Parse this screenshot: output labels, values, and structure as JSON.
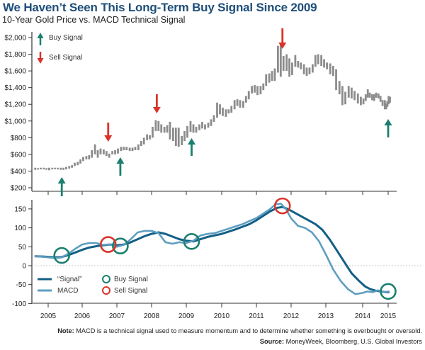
{
  "header": {
    "title": "We Haven’t Seen This Long-Term Buy Signal Since 2009",
    "subtitle": "10-Year Gold Price vs. MACD Technical Signal"
  },
  "footer": {
    "note_label": "Note:",
    "note_text": " MACD is a technical signal used to measure momentum and to determine whether something is overbought or oversold.",
    "source_label": "Source:",
    "source_text": " MoneyWeek, Bloomberg, U.S. Global Investors"
  },
  "colors": {
    "title": "#1f4e79",
    "price_bar": "#8c8c8c",
    "buy": "#1a7f6e",
    "sell": "#d9342b",
    "signal_line": "#135f86",
    "macd_line": "#5e9ec0",
    "zero_line": "#bbbbbb",
    "axis": "#333333"
  },
  "chart_data": [
    {
      "type": "bar",
      "subtype": "range-bar",
      "title": "Gold Price",
      "ylabel": "",
      "xlabel": "",
      "ylim": [
        200,
        2000
      ],
      "xlim": [
        2004.6,
        2015.1
      ],
      "yticks": [
        "$200",
        "$400",
        "$600",
        "$800",
        "$1,000",
        "$1,200",
        "$1,400",
        "$1,600",
        "$1,800",
        "$2,000"
      ],
      "ytick_values": [
        200,
        400,
        600,
        800,
        1000,
        1200,
        1400,
        1600,
        1800,
        2000
      ],
      "xticks": [
        "2005",
        "2006",
        "2007",
        "2008",
        "2009",
        "2010",
        "2011",
        "2012",
        "2013",
        "2014",
        "2015"
      ],
      "xtick_values": [
        2005,
        2006,
        2007,
        2008,
        2009,
        2010,
        2011,
        2012,
        2013,
        2014,
        2015
      ],
      "legend": [
        {
          "label": "Buy Signal",
          "marker": "up-arrow"
        },
        {
          "label": "Sell Signal",
          "marker": "down-arrow"
        }
      ],
      "legend_position": "top-left",
      "bars": [
        {
          "x": 2004.62,
          "low": 415,
          "high": 440
        },
        {
          "x": 2004.7,
          "low": 420,
          "high": 435
        },
        {
          "x": 2004.78,
          "low": 420,
          "high": 440
        },
        {
          "x": 2004.87,
          "low": 420,
          "high": 440
        },
        {
          "x": 2004.95,
          "low": 415,
          "high": 435
        },
        {
          "x": 2005.03,
          "low": 410,
          "high": 440
        },
        {
          "x": 2005.12,
          "low": 420,
          "high": 440
        },
        {
          "x": 2005.2,
          "low": 425,
          "high": 440
        },
        {
          "x": 2005.28,
          "low": 420,
          "high": 440
        },
        {
          "x": 2005.37,
          "low": 415,
          "high": 440
        },
        {
          "x": 2005.45,
          "low": 415,
          "high": 440
        },
        {
          "x": 2005.53,
          "low": 420,
          "high": 450
        },
        {
          "x": 2005.62,
          "low": 430,
          "high": 460
        },
        {
          "x": 2005.7,
          "low": 440,
          "high": 470
        },
        {
          "x": 2005.78,
          "low": 460,
          "high": 500
        },
        {
          "x": 2005.87,
          "low": 470,
          "high": 510
        },
        {
          "x": 2005.95,
          "low": 490,
          "high": 540
        },
        {
          "x": 2006.03,
          "low": 520,
          "high": 570
        },
        {
          "x": 2006.12,
          "low": 540,
          "high": 580
        },
        {
          "x": 2006.2,
          "low": 540,
          "high": 590
        },
        {
          "x": 2006.28,
          "low": 560,
          "high": 650
        },
        {
          "x": 2006.37,
          "low": 600,
          "high": 720
        },
        {
          "x": 2006.45,
          "low": 560,
          "high": 650
        },
        {
          "x": 2006.53,
          "low": 600,
          "high": 670
        },
        {
          "x": 2006.62,
          "low": 600,
          "high": 660
        },
        {
          "x": 2006.7,
          "low": 580,
          "high": 640
        },
        {
          "x": 2006.78,
          "low": 560,
          "high": 610
        },
        {
          "x": 2006.87,
          "low": 600,
          "high": 640
        },
        {
          "x": 2006.95,
          "low": 600,
          "high": 650
        },
        {
          "x": 2007.03,
          "low": 610,
          "high": 670
        },
        {
          "x": 2007.12,
          "low": 640,
          "high": 690
        },
        {
          "x": 2007.2,
          "low": 650,
          "high": 690
        },
        {
          "x": 2007.28,
          "low": 650,
          "high": 690
        },
        {
          "x": 2007.37,
          "low": 640,
          "high": 680
        },
        {
          "x": 2007.45,
          "low": 640,
          "high": 680
        },
        {
          "x": 2007.53,
          "low": 650,
          "high": 690
        },
        {
          "x": 2007.62,
          "low": 650,
          "high": 720
        },
        {
          "x": 2007.7,
          "low": 700,
          "high": 760
        },
        {
          "x": 2007.78,
          "low": 720,
          "high": 800
        },
        {
          "x": 2007.87,
          "low": 770,
          "high": 840
        },
        {
          "x": 2007.95,
          "low": 780,
          "high": 830
        },
        {
          "x": 2008.03,
          "low": 800,
          "high": 930
        },
        {
          "x": 2008.12,
          "low": 880,
          "high": 1010
        },
        {
          "x": 2008.2,
          "low": 880,
          "high": 1000
        },
        {
          "x": 2008.28,
          "low": 860,
          "high": 960
        },
        {
          "x": 2008.37,
          "low": 860,
          "high": 930
        },
        {
          "x": 2008.45,
          "low": 860,
          "high": 950
        },
        {
          "x": 2008.53,
          "low": 780,
          "high": 990
        },
        {
          "x": 2008.62,
          "low": 760,
          "high": 920
        },
        {
          "x": 2008.7,
          "low": 700,
          "high": 920
        },
        {
          "x": 2008.78,
          "low": 690,
          "high": 920
        },
        {
          "x": 2008.87,
          "low": 710,
          "high": 820
        },
        {
          "x": 2008.95,
          "low": 760,
          "high": 880
        },
        {
          "x": 2009.03,
          "low": 800,
          "high": 940
        },
        {
          "x": 2009.12,
          "low": 870,
          "high": 1000
        },
        {
          "x": 2009.2,
          "low": 860,
          "high": 960
        },
        {
          "x": 2009.28,
          "low": 860,
          "high": 930
        },
        {
          "x": 2009.37,
          "low": 890,
          "high": 960
        },
        {
          "x": 2009.45,
          "low": 910,
          "high": 990
        },
        {
          "x": 2009.53,
          "low": 900,
          "high": 960
        },
        {
          "x": 2009.62,
          "low": 920,
          "high": 980
        },
        {
          "x": 2009.7,
          "low": 940,
          "high": 1020
        },
        {
          "x": 2009.78,
          "low": 990,
          "high": 1070
        },
        {
          "x": 2009.87,
          "low": 1040,
          "high": 1220
        },
        {
          "x": 2009.95,
          "low": 1080,
          "high": 1200
        },
        {
          "x": 2010.03,
          "low": 1060,
          "high": 1160
        },
        {
          "x": 2010.12,
          "low": 1050,
          "high": 1140
        },
        {
          "x": 2010.2,
          "low": 1090,
          "high": 1140
        },
        {
          "x": 2010.28,
          "low": 1100,
          "high": 1180
        },
        {
          "x": 2010.37,
          "low": 1140,
          "high": 1250
        },
        {
          "x": 2010.45,
          "low": 1180,
          "high": 1260
        },
        {
          "x": 2010.53,
          "low": 1160,
          "high": 1250
        },
        {
          "x": 2010.62,
          "low": 1160,
          "high": 1240
        },
        {
          "x": 2010.7,
          "low": 1220,
          "high": 1300
        },
        {
          "x": 2010.78,
          "low": 1260,
          "high": 1360
        },
        {
          "x": 2010.87,
          "low": 1330,
          "high": 1420
        },
        {
          "x": 2010.95,
          "low": 1340,
          "high": 1430
        },
        {
          "x": 2011.03,
          "low": 1310,
          "high": 1420
        },
        {
          "x": 2011.12,
          "low": 1320,
          "high": 1420
        },
        {
          "x": 2011.2,
          "low": 1370,
          "high": 1450
        },
        {
          "x": 2011.28,
          "low": 1420,
          "high": 1560
        },
        {
          "x": 2011.37,
          "low": 1460,
          "high": 1570
        },
        {
          "x": 2011.45,
          "low": 1480,
          "high": 1600
        },
        {
          "x": 2011.53,
          "low": 1480,
          "high": 1630
        },
        {
          "x": 2011.62,
          "low": 1580,
          "high": 1900
        },
        {
          "x": 2011.7,
          "low": 1530,
          "high": 1920
        },
        {
          "x": 2011.78,
          "low": 1600,
          "high": 1780
        },
        {
          "x": 2011.87,
          "low": 1600,
          "high": 1800
        },
        {
          "x": 2011.95,
          "low": 1530,
          "high": 1750
        },
        {
          "x": 2012.03,
          "low": 1550,
          "high": 1700
        },
        {
          "x": 2012.12,
          "low": 1650,
          "high": 1790
        },
        {
          "x": 2012.2,
          "low": 1640,
          "high": 1720
        },
        {
          "x": 2012.28,
          "low": 1620,
          "high": 1700
        },
        {
          "x": 2012.37,
          "low": 1560,
          "high": 1680
        },
        {
          "x": 2012.45,
          "low": 1540,
          "high": 1640
        },
        {
          "x": 2012.53,
          "low": 1560,
          "high": 1640
        },
        {
          "x": 2012.62,
          "low": 1580,
          "high": 1680
        },
        {
          "x": 2012.7,
          "low": 1650,
          "high": 1790
        },
        {
          "x": 2012.78,
          "low": 1680,
          "high": 1800
        },
        {
          "x": 2012.87,
          "low": 1660,
          "high": 1790
        },
        {
          "x": 2012.95,
          "low": 1640,
          "high": 1740
        },
        {
          "x": 2013.03,
          "low": 1620,
          "high": 1700
        },
        {
          "x": 2013.12,
          "low": 1560,
          "high": 1690
        },
        {
          "x": 2013.2,
          "low": 1540,
          "high": 1660
        },
        {
          "x": 2013.28,
          "low": 1370,
          "high": 1620
        },
        {
          "x": 2013.37,
          "low": 1320,
          "high": 1480
        },
        {
          "x": 2013.45,
          "low": 1190,
          "high": 1420
        },
        {
          "x": 2013.53,
          "low": 1200,
          "high": 1350
        },
        {
          "x": 2013.62,
          "low": 1280,
          "high": 1420
        },
        {
          "x": 2013.7,
          "low": 1270,
          "high": 1400
        },
        {
          "x": 2013.78,
          "low": 1250,
          "high": 1360
        },
        {
          "x": 2013.87,
          "low": 1210,
          "high": 1330
        },
        {
          "x": 2013.95,
          "low": 1190,
          "high": 1290
        },
        {
          "x": 2014.03,
          "low": 1200,
          "high": 1270
        },
        {
          "x": 2014.12,
          "low": 1240,
          "high": 1320
        },
        {
          "x": 2014.2,
          "low": 1280,
          "high": 1380
        },
        {
          "x": 2014.28,
          "low": 1280,
          "high": 1340
        },
        {
          "x": 2014.37,
          "low": 1250,
          "high": 1320
        },
        {
          "x": 2014.45,
          "low": 1240,
          "high": 1320
        },
        {
          "x": 2014.53,
          "low": 1280,
          "high": 1340
        },
        {
          "x": 2014.62,
          "low": 1270,
          "high": 1330
        },
        {
          "x": 2014.7,
          "low": 1230,
          "high": 1300
        },
        {
          "x": 2014.78,
          "low": 1180,
          "high": 1250
        },
        {
          "x": 2014.87,
          "low": 1140,
          "high": 1250
        },
        {
          "x": 2014.92,
          "low": 1140,
          "high": 1210
        },
        {
          "x": 2014.97,
          "low": 1170,
          "high": 1240
        },
        {
          "x": 2015.02,
          "low": 1200,
          "high": 1300
        },
        {
          "x": 2015.07,
          "low": 1220,
          "high": 1290
        }
      ],
      "buy_signals": [
        2005.4,
        2007.1,
        2009.15,
        2015.0
      ],
      "sell_signals": [
        2006.75,
        2008.15,
        2011.75
      ]
    },
    {
      "type": "line",
      "title": "MACD",
      "ylabel": "",
      "xlabel": "",
      "ylim": [
        -100,
        175
      ],
      "xlim": [
        2004.6,
        2015.1
      ],
      "yticks": [
        "-100",
        "-50",
        "0",
        "50",
        "100",
        "150"
      ],
      "ytick_values": [
        -100,
        -50,
        0,
        50,
        100,
        150
      ],
      "xticks": [
        "2005",
        "2006",
        "2007",
        "2008",
        "2009",
        "2010",
        "2011",
        "2012",
        "2013",
        "2014",
        "2015"
      ],
      "xtick_values": [
        2005,
        2006,
        2007,
        2008,
        2009,
        2010,
        2011,
        2012,
        2013,
        2014,
        2015
      ],
      "legend": [
        {
          "label": "“Signal”",
          "marker": "line-dark"
        },
        {
          "label": "MACD",
          "marker": "line-light"
        },
        {
          "label": "Buy Signal",
          "marker": "circle-green"
        },
        {
          "label": "Sell Signal",
          "marker": "circle-red"
        }
      ],
      "legend_position": "bottom-left",
      "series": [
        {
          "name": "“Signal”",
          "x": [
            2004.6,
            2004.9,
            2005.2,
            2005.4,
            2005.6,
            2005.8,
            2006.0,
            2006.2,
            2006.5,
            2006.8,
            2007.0,
            2007.2,
            2007.4,
            2007.6,
            2007.8,
            2008.0,
            2008.2,
            2008.4,
            2008.6,
            2008.8,
            2009.0,
            2009.2,
            2009.4,
            2009.6,
            2009.8,
            2010.0,
            2010.2,
            2010.4,
            2010.6,
            2010.8,
            2011.0,
            2011.2,
            2011.4,
            2011.6,
            2011.75,
            2011.9,
            2012.1,
            2012.3,
            2012.5,
            2012.7,
            2012.9,
            2013.1,
            2013.3,
            2013.5,
            2013.7,
            2013.9,
            2014.1,
            2014.3,
            2014.5,
            2014.7,
            2014.9,
            2015.05
          ],
          "values": [
            25,
            24,
            22,
            23,
            28,
            35,
            42,
            48,
            53,
            56,
            54,
            56,
            62,
            70,
            78,
            84,
            88,
            84,
            77,
            70,
            66,
            64,
            70,
            76,
            80,
            84,
            90,
            96,
            103,
            110,
            120,
            132,
            144,
            153,
            155,
            150,
            140,
            130,
            120,
            110,
            95,
            70,
            40,
            10,
            -20,
            -40,
            -55,
            -62,
            -66,
            -68,
            -70,
            -70
          ]
        },
        {
          "name": "MACD",
          "x": [
            2004.6,
            2004.9,
            2005.2,
            2005.4,
            2005.6,
            2005.8,
            2006.0,
            2006.2,
            2006.4,
            2006.6,
            2006.8,
            2007.0,
            2007.2,
            2007.4,
            2007.6,
            2007.8,
            2008.0,
            2008.2,
            2008.4,
            2008.6,
            2008.8,
            2009.0,
            2009.2,
            2009.4,
            2009.6,
            2009.8,
            2010.0,
            2010.2,
            2010.4,
            2010.6,
            2010.8,
            2011.0,
            2011.2,
            2011.4,
            2011.55,
            2011.7,
            2011.85,
            2012.0,
            2012.2,
            2012.4,
            2012.6,
            2012.8,
            2013.0,
            2013.2,
            2013.4,
            2013.6,
            2013.8,
            2014.0,
            2014.2,
            2014.4,
            2014.6,
            2014.8,
            2015.05
          ],
          "values": [
            25,
            23,
            20,
            22,
            32,
            45,
            56,
            60,
            60,
            55,
            56,
            50,
            55,
            70,
            88,
            92,
            92,
            86,
            62,
            58,
            62,
            60,
            66,
            80,
            84,
            86,
            92,
            98,
            104,
            110,
            118,
            126,
            138,
            150,
            162,
            164,
            150,
            125,
            105,
            100,
            88,
            65,
            30,
            -10,
            -40,
            -62,
            -75,
            -72,
            -68,
            -70,
            -65,
            -70,
            -68
          ]
        }
      ],
      "buy_circles": [
        {
          "x": 2005.4,
          "y": 27
        },
        {
          "x": 2007.1,
          "y": 52
        },
        {
          "x": 2009.15,
          "y": 64
        },
        {
          "x": 2015.0,
          "y": -68
        }
      ],
      "sell_circles": [
        {
          "x": 2006.75,
          "y": 56
        },
        {
          "x": 2011.75,
          "y": 158
        }
      ]
    }
  ]
}
